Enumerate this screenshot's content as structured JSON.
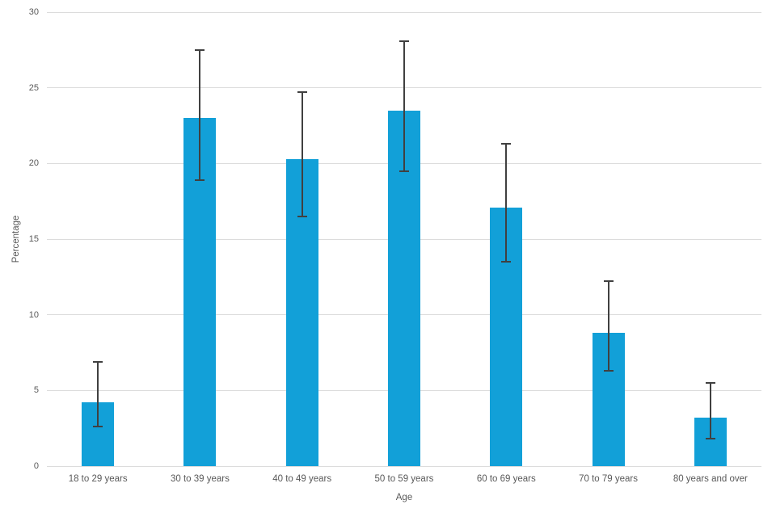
{
  "chart_data": {
    "type": "bar",
    "title": "",
    "xlabel": "Age",
    "ylabel": "Percentage",
    "ylim": [
      0,
      30
    ],
    "yticks": [
      0,
      5,
      10,
      15,
      20,
      25,
      30
    ],
    "grid": true,
    "legend": "none",
    "categories": [
      "18 to 29 years",
      "30 to 39 years",
      "40 to 49 years",
      "50 to 59 years",
      "60 to 69 years",
      "70 to 79 years",
      "80 years and over"
    ],
    "values": [
      4.2,
      23.0,
      20.3,
      23.5,
      17.1,
      8.8,
      3.2
    ],
    "error_low": [
      2.6,
      18.9,
      16.5,
      19.5,
      13.5,
      6.3,
      1.8
    ],
    "error_high": [
      6.9,
      27.5,
      24.7,
      28.1,
      21.3,
      12.2,
      5.5
    ],
    "colors": {
      "bar": "#12A0D8",
      "error_bar": "#404040",
      "gridline": "#DCDCDC",
      "tick_label": "#595959",
      "axis_label": "#595959",
      "background": "#FFFFFF"
    }
  }
}
